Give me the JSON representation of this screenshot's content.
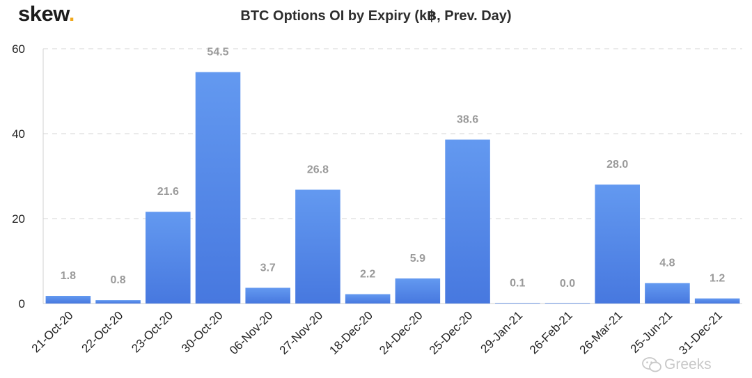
{
  "brand": {
    "name": "skew",
    "dot": "."
  },
  "watermark": {
    "text": "Greeks",
    "icon": "wechat-icon"
  },
  "colors": {
    "bar_top": "#6399f0",
    "bar_bottom": "#4778df",
    "label": "#9a9a9a",
    "grid": "#dedede",
    "axis_text": "#222222",
    "brand_dot": "#f0a81c"
  },
  "chart_data": {
    "type": "bar",
    "title": "BTC Options OI by Expiry (k฿, Prev. Day)",
    "xlabel": "",
    "ylabel": "",
    "categories": [
      "21-Oct-20",
      "22-Oct-20",
      "23-Oct-20",
      "30-Oct-20",
      "06-Nov-20",
      "27-Nov-20",
      "18-Dec-20",
      "24-Dec-20",
      "25-Dec-20",
      "29-Jan-21",
      "26-Feb-21",
      "26-Mar-21",
      "25-Jun-21",
      "31-Dec-21"
    ],
    "values": [
      1.8,
      0.8,
      21.6,
      54.5,
      3.7,
      26.8,
      2.2,
      5.9,
      38.6,
      0.1,
      0.0,
      28.0,
      4.8,
      1.2
    ],
    "value_labels": [
      "1.8",
      "0.8",
      "21.6",
      "54.5",
      "3.7",
      "26.8",
      "2.2",
      "5.9",
      "38.6",
      "0.1",
      "0.0",
      "28.0",
      "4.8",
      "1.2"
    ],
    "ylim": [
      0,
      60
    ],
    "yticks": [
      0,
      20,
      40,
      60
    ],
    "grid": true,
    "legend": "none"
  }
}
